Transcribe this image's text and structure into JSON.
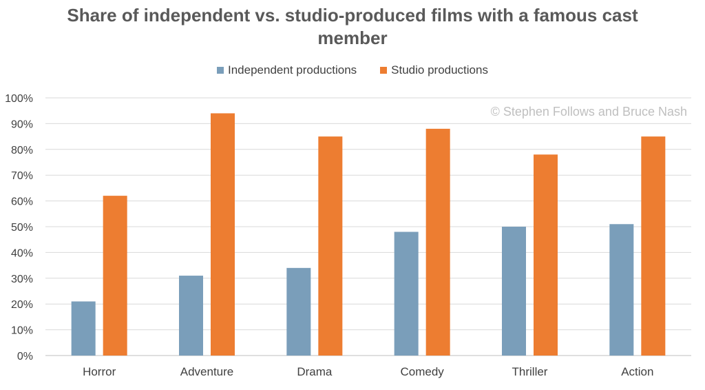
{
  "chart_data": {
    "type": "bar",
    "title": "Share of independent vs. studio-produced films with a famous cast member",
    "categories": [
      "Horror",
      "Adventure",
      "Drama",
      "Comedy",
      "Thriller",
      "Action"
    ],
    "series": [
      {
        "name": "Independent productions",
        "color": "#7a9eba",
        "values": [
          21,
          31,
          34,
          48,
          50,
          51
        ]
      },
      {
        "name": "Studio productions",
        "color": "#ed7d31",
        "values": [
          62,
          94,
          85,
          88,
          78,
          85
        ]
      }
    ],
    "ylim": [
      0,
      100
    ],
    "yticks": [
      "0%",
      "10%",
      "20%",
      "30%",
      "40%",
      "50%",
      "60%",
      "70%",
      "80%",
      "90%",
      "100%"
    ],
    "grid": true,
    "legend_position": "top",
    "watermark": "© Stephen Follows and Bruce Nash"
  }
}
